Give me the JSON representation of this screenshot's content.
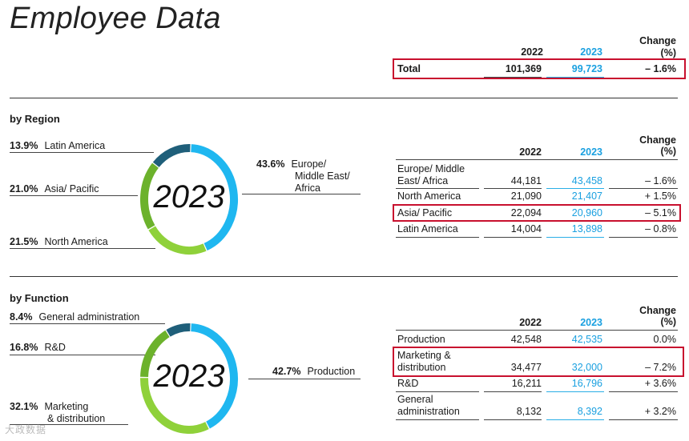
{
  "page_title": "Employee Data",
  "watermark": "大政数据",
  "colors": {
    "dark_teal": "#1f5f7a",
    "sky_blue": "#1fb7f0",
    "green": "#6cb22c",
    "light_green": "#8fd13a",
    "highlight_red": "#c8102e"
  },
  "total_table": {
    "headers": {
      "y2022": "2022",
      "y2023": "2023",
      "change": "Change\n(%)"
    },
    "row": {
      "label": "Total",
      "v2022": "101,369",
      "v2023": "99,723",
      "change": "– 1.6%"
    }
  },
  "region": {
    "section_title": "by Region",
    "ring_label": "2023",
    "labels": {
      "latin_america": {
        "pct": "13.9%",
        "name": "Latin America"
      },
      "asia_pacific": {
        "pct": "21.0%",
        "name": "Asia/ Pacific"
      },
      "north_america": {
        "pct": "21.5%",
        "name": "North America"
      },
      "europe": {
        "pct": "43.6%",
        "name_line1": "Europe/",
        "name_line2": "Middle East/",
        "name_line3": "Africa"
      }
    },
    "table": {
      "headers": {
        "y2022": "2022",
        "y2023": "2023",
        "change_line1": "Change",
        "change_line2": "(%)"
      },
      "rows": [
        {
          "label_line1": "Europe/ Middle",
          "label_line2": "East/ Africa",
          "v2022": "44,181",
          "v2023": "43,458",
          "change": "– 1.6%"
        },
        {
          "label_line1": "North America",
          "label_line2": "",
          "v2022": "21,090",
          "v2023": "21,407",
          "change": "+ 1.5%"
        },
        {
          "label_line1": "Asia/ Pacific",
          "label_line2": "",
          "v2022": "22,094",
          "v2023": "20,960",
          "change": "– 5.1%"
        },
        {
          "label_line1": "Latin America",
          "label_line2": "",
          "v2022": "14,004",
          "v2023": "13,898",
          "change": "– 0.8%"
        }
      ]
    }
  },
  "function": {
    "section_title": "by Function",
    "ring_label": "2023",
    "labels": {
      "general_admin": {
        "pct": "8.4%",
        "name": "General administration"
      },
      "rnd": {
        "pct": "16.8%",
        "name": "R&D"
      },
      "marketing": {
        "pct": "32.1%",
        "name_line1": "Marketing",
        "name_line2": "& distribution"
      },
      "production": {
        "pct": "42.7%",
        "name": "Production"
      }
    },
    "table": {
      "headers": {
        "y2022": "2022",
        "y2023": "2023",
        "change_line1": "Change",
        "change_line2": "(%)"
      },
      "rows": [
        {
          "label_line1": "Production",
          "label_line2": "",
          "v2022": "42,548",
          "v2023": "42,535",
          "change": "0.0%"
        },
        {
          "label_line1": "Marketing &",
          "label_line2": "distribution",
          "v2022": "34,477",
          "v2023": "32,000",
          "change": "– 7.2%"
        },
        {
          "label_line1": "R&D",
          "label_line2": "",
          "v2022": "16,211",
          "v2023": "16,796",
          "change": "+ 3.6%"
        },
        {
          "label_line1": "General",
          "label_line2": "administration",
          "v2022": "8,132",
          "v2023": "8,392",
          "change": "+ 3.2%"
        }
      ]
    }
  },
  "chart_data": [
    {
      "type": "pie",
      "year": "2023",
      "categories": [
        "Europe/ Middle East/ Africa",
        "North America",
        "Asia/ Pacific",
        "Latin America"
      ],
      "values": [
        43.6,
        21.5,
        21.0,
        13.9
      ],
      "colors": [
        "#1fb7f0",
        "#8fd13a",
        "#6cb22c",
        "#1f5f7a"
      ],
      "table": {
        "columns": [
          "2022",
          "2023",
          "Change (%)"
        ],
        "rows": [
          [
            "Europe/ Middle East/ Africa",
            44181,
            43458,
            -1.6
          ],
          [
            "North America",
            21090,
            21407,
            1.5
          ],
          [
            "Asia/ Pacific",
            22094,
            20960,
            -5.1
          ],
          [
            "Latin America",
            14004,
            13898,
            -0.8
          ]
        ]
      }
    },
    {
      "type": "pie",
      "year": "2023",
      "categories": [
        "Production",
        "Marketing & distribution",
        "R&D",
        "General administration"
      ],
      "values": [
        42.7,
        32.1,
        16.8,
        8.4
      ],
      "colors": [
        "#1fb7f0",
        "#8fd13a",
        "#6cb22c",
        "#1f5f7a"
      ],
      "table": {
        "columns": [
          "2022",
          "2023",
          "Change (%)"
        ],
        "rows": [
          [
            "Production",
            42548,
            42535,
            0.0
          ],
          [
            "Marketing & distribution",
            34477,
            32000,
            -7.2
          ],
          [
            "R&D",
            16211,
            16796,
            3.6
          ],
          [
            "General administration",
            8132,
            8392,
            3.2
          ]
        ]
      }
    },
    {
      "type": "table",
      "columns": [
        "2022",
        "2023",
        "Change (%)"
      ],
      "rows": [
        [
          "Total",
          101369,
          99723,
          -1.6
        ]
      ]
    }
  ]
}
